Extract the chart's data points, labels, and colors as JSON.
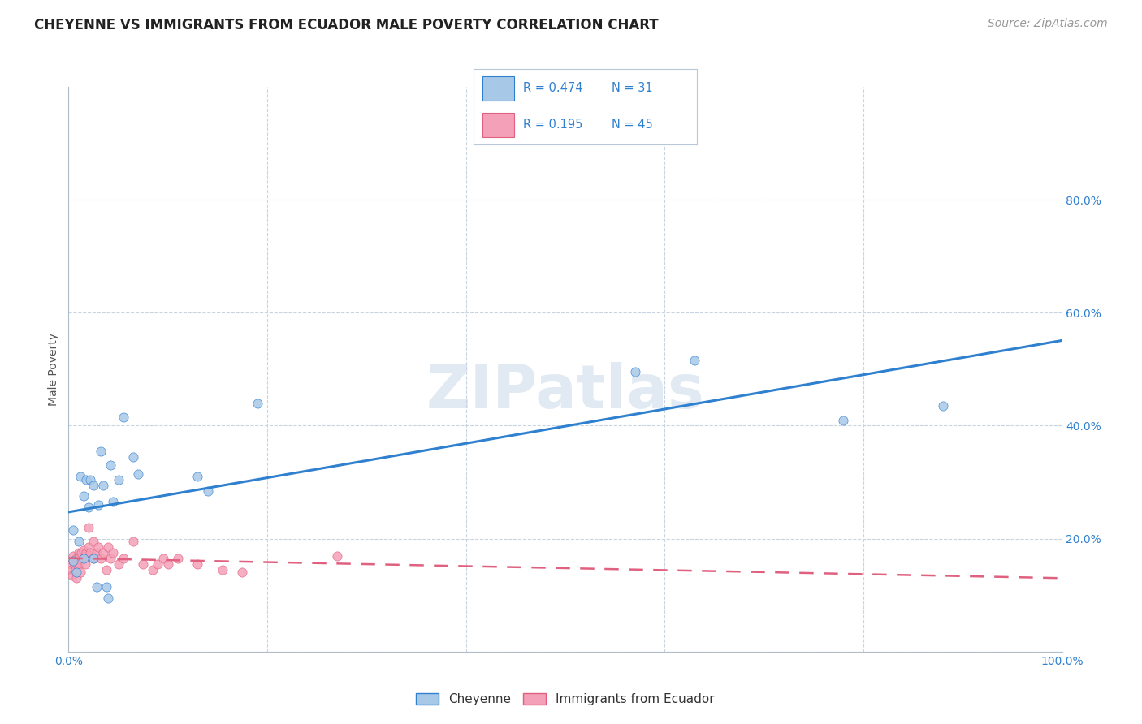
{
  "title": "CHEYENNE VS IMMIGRANTS FROM ECUADOR MALE POVERTY CORRELATION CHART",
  "source": "Source: ZipAtlas.com",
  "ylabel": "Male Poverty",
  "xlim": [
    0,
    1.0
  ],
  "ylim": [
    0,
    1.0
  ],
  "legend_r1": "0.474",
  "legend_n1": "31",
  "legend_r2": "0.195",
  "legend_n2": "45",
  "cheyenne_color": "#a8c8e8",
  "ecuador_color": "#f4a0b8",
  "line_blue": "#3080d0",
  "line_pink": "#e06080",
  "background_color": "#ffffff",
  "grid_color": "#c8d4e0",
  "cheyenne_x": [
    0.005,
    0.005,
    0.008,
    0.01,
    0.012,
    0.015,
    0.015,
    0.018,
    0.02,
    0.022,
    0.025,
    0.025,
    0.028,
    0.03,
    0.032,
    0.035,
    0.038,
    0.04,
    0.042,
    0.045,
    0.05,
    0.055,
    0.065,
    0.07,
    0.13,
    0.14,
    0.19,
    0.57,
    0.63,
    0.78,
    0.88
  ],
  "cheyenne_y": [
    0.215,
    0.16,
    0.14,
    0.195,
    0.31,
    0.275,
    0.165,
    0.305,
    0.255,
    0.305,
    0.295,
    0.165,
    0.115,
    0.26,
    0.355,
    0.295,
    0.115,
    0.095,
    0.33,
    0.265,
    0.305,
    0.415,
    0.345,
    0.315,
    0.31,
    0.285,
    0.44,
    0.495,
    0.515,
    0.41,
    0.435
  ],
  "ecuador_x": [
    0.003,
    0.003,
    0.004,
    0.005,
    0.005,
    0.006,
    0.007,
    0.008,
    0.008,
    0.009,
    0.01,
    0.01,
    0.01,
    0.012,
    0.013,
    0.015,
    0.015,
    0.017,
    0.018,
    0.02,
    0.02,
    0.022,
    0.025,
    0.025,
    0.028,
    0.03,
    0.032,
    0.035,
    0.038,
    0.04,
    0.042,
    0.045,
    0.05,
    0.055,
    0.065,
    0.075,
    0.085,
    0.09,
    0.095,
    0.1,
    0.11,
    0.13,
    0.155,
    0.175,
    0.27
  ],
  "ecuador_y": [
    0.155,
    0.145,
    0.135,
    0.17,
    0.16,
    0.155,
    0.145,
    0.13,
    0.165,
    0.155,
    0.175,
    0.165,
    0.155,
    0.14,
    0.175,
    0.18,
    0.165,
    0.155,
    0.175,
    0.185,
    0.22,
    0.175,
    0.165,
    0.195,
    0.175,
    0.185,
    0.165,
    0.175,
    0.145,
    0.185,
    0.165,
    0.175,
    0.155,
    0.165,
    0.195,
    0.155,
    0.145,
    0.155,
    0.165,
    0.155,
    0.165,
    0.155,
    0.145,
    0.14,
    0.17
  ],
  "watermark": "ZIPatlas",
  "title_fontsize": 12,
  "axis_fontsize": 10,
  "tick_fontsize": 10,
  "source_fontsize": 10
}
